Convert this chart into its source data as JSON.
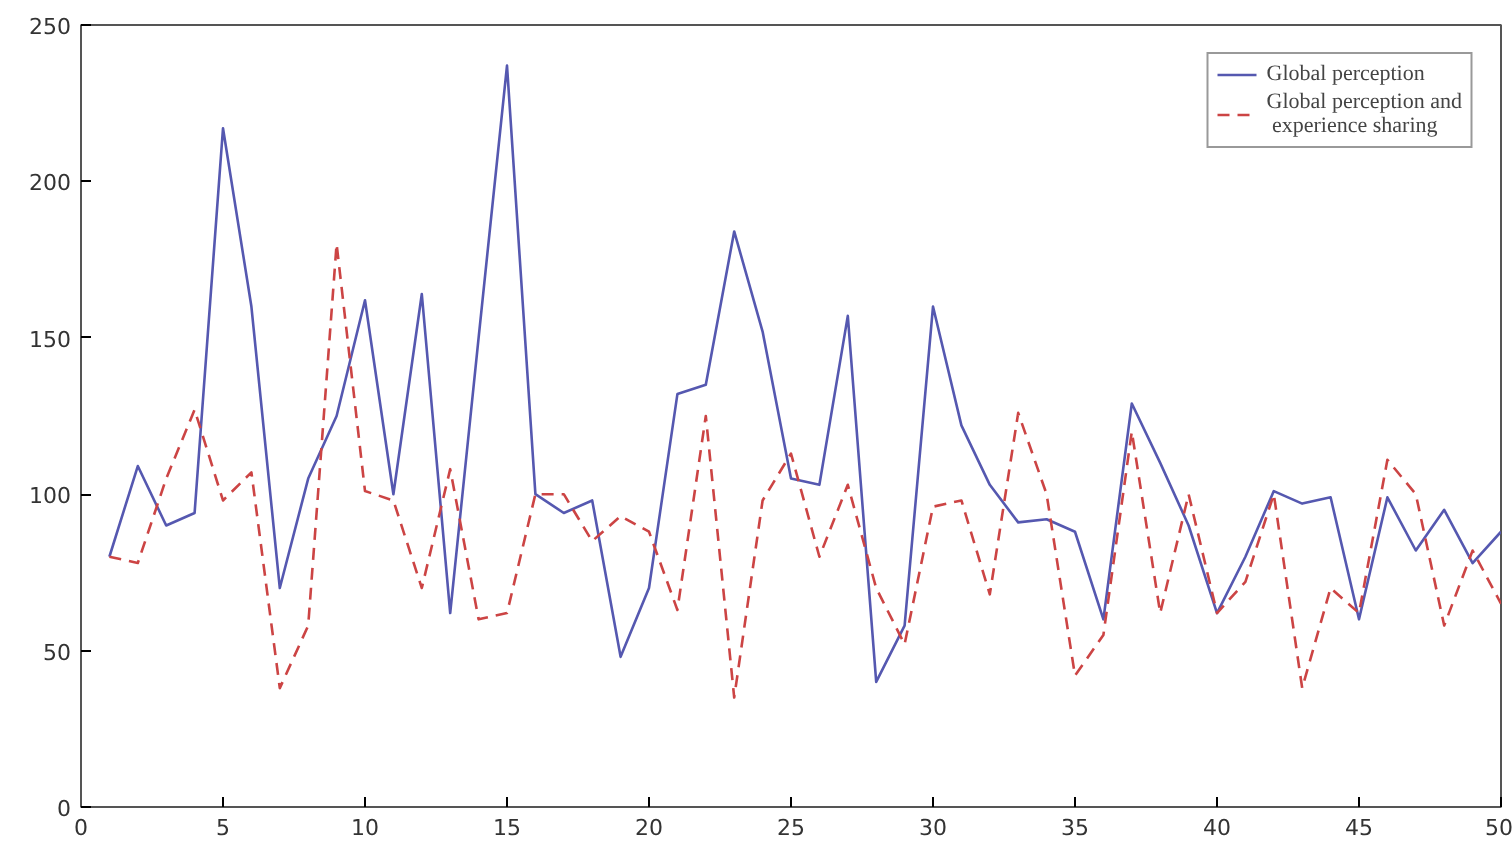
{
  "chart_data": {
    "type": "line",
    "x": [
      1,
      2,
      3,
      4,
      5,
      6,
      7,
      8,
      9,
      10,
      11,
      12,
      13,
      14,
      15,
      16,
      17,
      18,
      19,
      20,
      21,
      22,
      23,
      24,
      25,
      26,
      27,
      28,
      29,
      30,
      31,
      32,
      33,
      34,
      35,
      36,
      37,
      38,
      39,
      40,
      41,
      42,
      43,
      44,
      45,
      46,
      47,
      48,
      49,
      50
    ],
    "series": [
      {
        "name": "Global perception",
        "color": "#5558b0",
        "line_style": "solid",
        "values": [
          80,
          109,
          90,
          94,
          217,
          160,
          70,
          105,
          125,
          162,
          100,
          164,
          62,
          150,
          237,
          100,
          94,
          98,
          48,
          70,
          132,
          135,
          184,
          152,
          105,
          103,
          157,
          40,
          58,
          160,
          122,
          103,
          91,
          92,
          88,
          60,
          129,
          110,
          90,
          62,
          80,
          101,
          97,
          99,
          60,
          99,
          82,
          95,
          78,
          88
        ]
      },
      {
        "name": "Global perception and\n experience sharing",
        "color": "#cc4444",
        "line_style": "dashed",
        "values": [
          80,
          78,
          105,
          127,
          98,
          107,
          38,
          58,
          180,
          101,
          98,
          70,
          108,
          60,
          62,
          100,
          100,
          85,
          93,
          88,
          63,
          125,
          35,
          98,
          113,
          80,
          103,
          70,
          52,
          96,
          98,
          68,
          126,
          100,
          42,
          55,
          120,
          62,
          100,
          62,
          72,
          100,
          38,
          70,
          62,
          111,
          100,
          58,
          82,
          65
        ]
      }
    ],
    "xlim": [
      0,
      50
    ],
    "ylim": [
      0,
      250
    ],
    "xticks": [
      0,
      5,
      10,
      15,
      20,
      25,
      30,
      35,
      40,
      45,
      50
    ],
    "yticks": [
      0,
      50,
      100,
      150,
      200,
      250
    ],
    "grid": false,
    "legend": "top right",
    "marker": "none"
  }
}
